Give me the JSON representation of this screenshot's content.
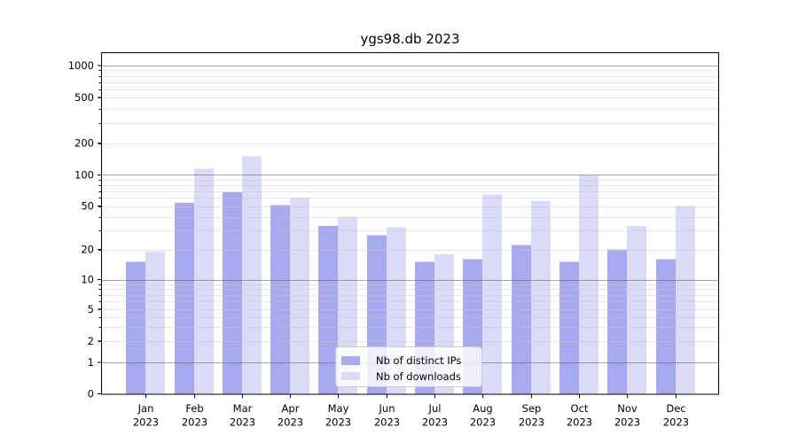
{
  "title": "ygs98.db 2023",
  "chart_data": {
    "type": "bar",
    "title": "ygs98.db 2023",
    "categories": [
      "Jan",
      "Feb",
      "Mar",
      "Apr",
      "May",
      "Jun",
      "Jul",
      "Aug",
      "Sep",
      "Oct",
      "Nov",
      "Dec"
    ],
    "category_year": "2023",
    "series": [
      {
        "name": "Nb of distinct IPs",
        "color": "#a9a9ef",
        "values": [
          15,
          54,
          68,
          51,
          33,
          27,
          15,
          16,
          22,
          15,
          20,
          16
        ]
      },
      {
        "name": "Nb of downloads",
        "color": "#dbdbf7",
        "values": [
          19,
          114,
          150,
          60,
          40,
          32,
          18,
          65,
          56,
          100,
          33,
          50
        ]
      }
    ],
    "yscale": "symlog",
    "y_ticks": [
      0,
      1,
      2,
      5,
      10,
      20,
      50,
      100,
      200,
      500,
      1000
    ],
    "ylim": [
      0,
      1300
    ],
    "xlabel": "",
    "ylabel": "",
    "grid": true,
    "legend_position": "lower center"
  },
  "colors": {
    "bar_distinct_ips": "#a9a9ef",
    "bar_downloads": "#dbdbf7",
    "major_grid": "#b0b0b0",
    "minor_grid": "#eaeaea",
    "spine": "#000000",
    "legend_border": "#cccccc"
  }
}
